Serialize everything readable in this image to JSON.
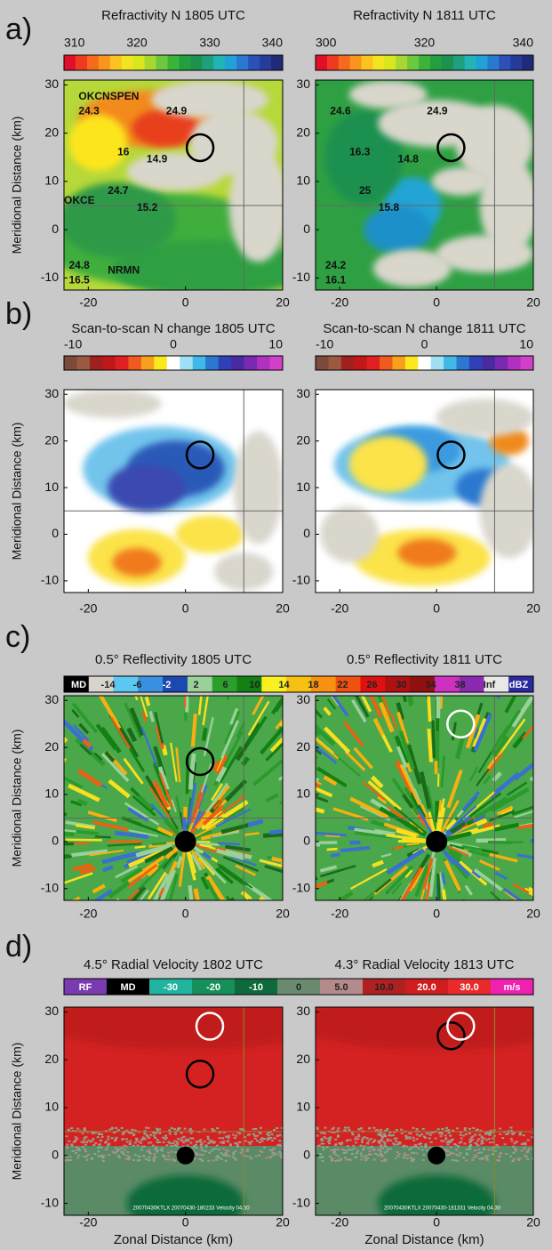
{
  "y_axis_label": "Meridional Distance (km)",
  "x_axis_label": "Zonal Distance (km)",
  "x_ticks": [
    -20,
    0,
    20
  ],
  "y_ticks": [
    30,
    20,
    10,
    0,
    -10
  ],
  "rows": [
    {
      "label": "a)",
      "panels": [
        {
          "title": "Refractivity N 1805 UTC",
          "colorbar": [
            310,
            320,
            330,
            340
          ],
          "annotations": [
            "OKCNSPEN",
            "24.3",
            "24.9",
            "16",
            "14.9",
            "24.7",
            "OKCE",
            "15.2",
            "24.8",
            "NRMN",
            "16.5"
          ]
        },
        {
          "title": "Refractivity N 1811 UTC",
          "colorbar": [
            300,
            320,
            340
          ],
          "annotations": [
            "24.6",
            "24.9",
            "16.3",
            "14.8",
            "25",
            "15.8",
            "24.2",
            "16.1"
          ]
        }
      ]
    },
    {
      "label": "b)",
      "panels": [
        {
          "title": "Scan-to-scan N change 1805 UTC",
          "colorbar": [
            -10,
            0,
            10
          ]
        },
        {
          "title": "Scan-to-scan N change 1811 UTC",
          "colorbar": [
            -10,
            0,
            10
          ]
        }
      ]
    },
    {
      "label": "c)",
      "panels": [
        {
          "title": "0.5° Reflectivity 1805 UTC"
        },
        {
          "title": "0.5° Reflectivity 1811 UTC"
        }
      ],
      "colorbar": [
        "MD",
        "-14",
        "-6",
        "-2",
        "2",
        "6",
        "10",
        "14",
        "18",
        "22",
        "26",
        "30",
        "34",
        "38",
        "Inf",
        "dBZ"
      ]
    },
    {
      "label": "d)",
      "panels": [
        {
          "title": "4.5° Radial Velocity 1802 UTC",
          "footer": "20070430KTLX 20070430-180233 Velocity 04.50"
        },
        {
          "title": "4.3° Radial Velocity 1813 UTC",
          "footer": "20070430KTLX 20070430-181331 Velocity 04.30"
        }
      ],
      "colorbar": [
        "RF",
        "MD",
        "-30",
        "-20",
        "-10",
        "0",
        "5.0",
        "10.0",
        "20.0",
        "30.0",
        "m/s"
      ]
    }
  ]
}
